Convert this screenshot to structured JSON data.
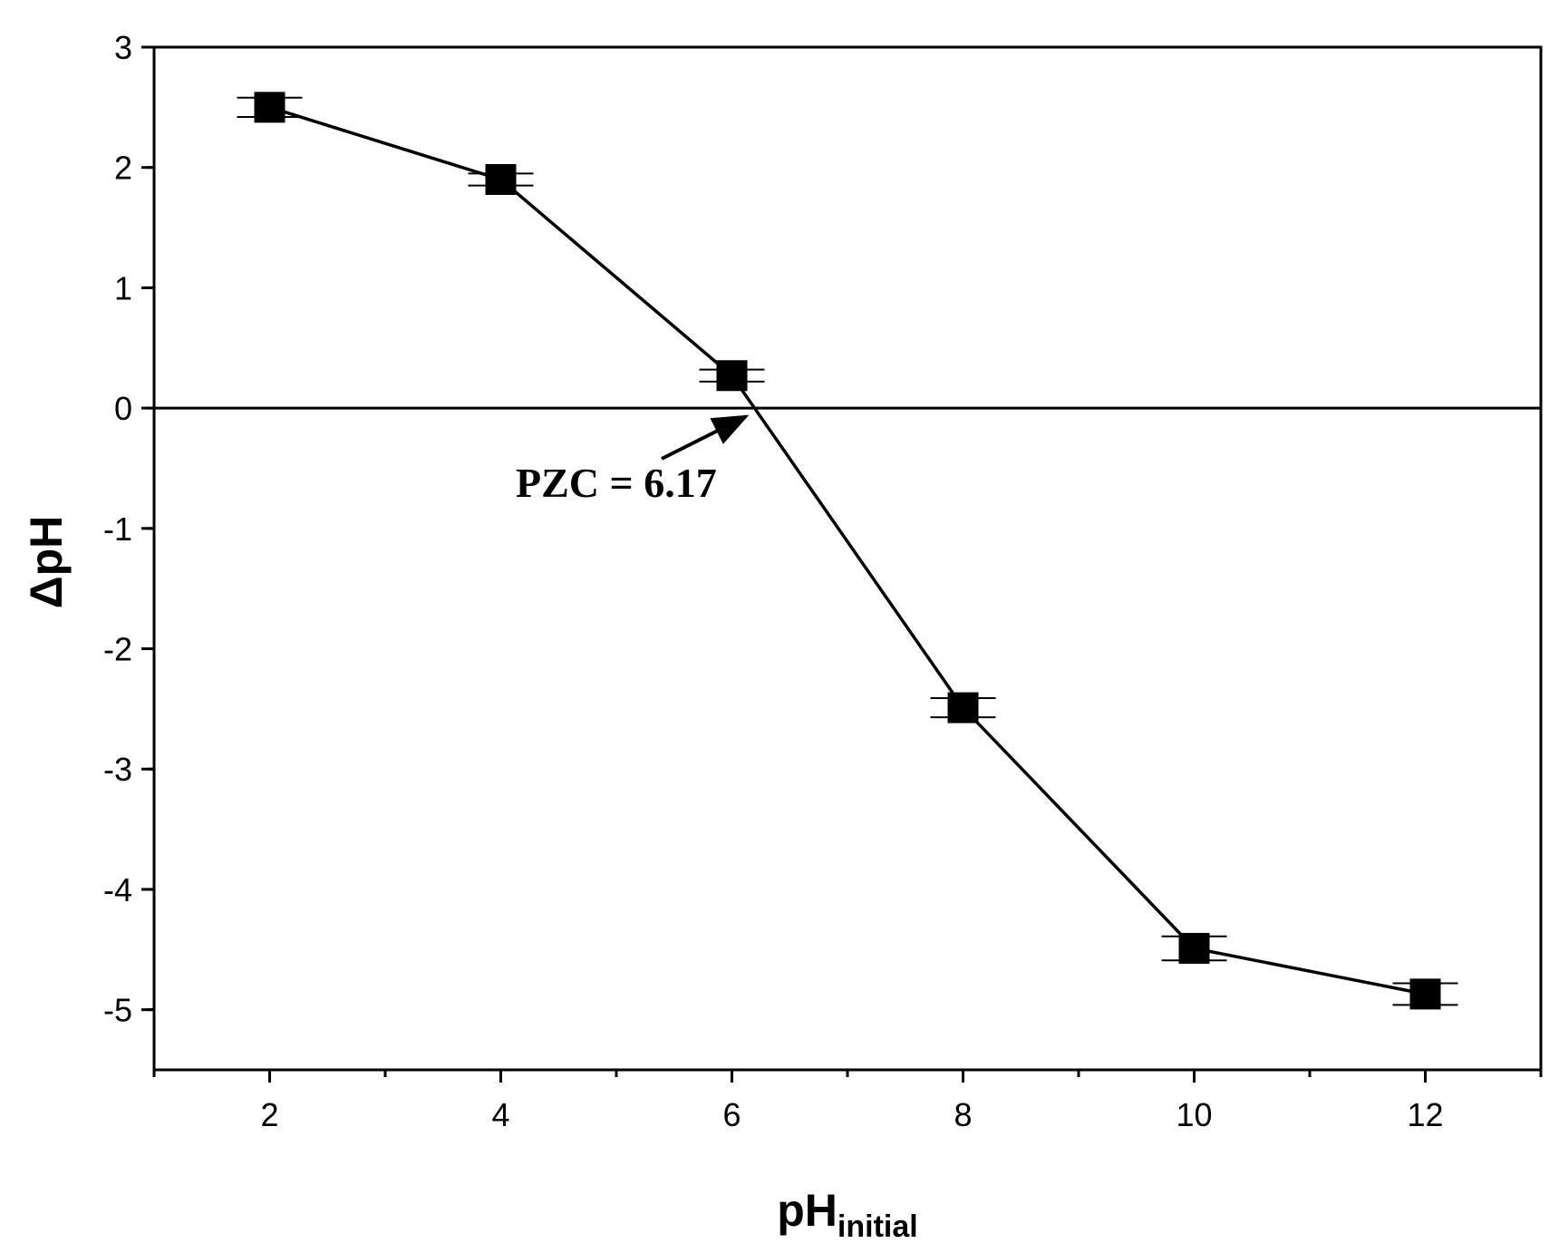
{
  "chart_data": {
    "type": "scatter",
    "xlabel": "pH",
    "xlabel_subscript": "initial",
    "ylabel": "ΔpH",
    "xlim": [
      1,
      13
    ],
    "ylim": [
      -5.5,
      3
    ],
    "x_ticks": [
      2,
      4,
      6,
      8,
      10,
      12
    ],
    "y_ticks": [
      3,
      2,
      1,
      0,
      -1,
      -2,
      -3,
      -4,
      -5
    ],
    "x_tick_labels": [
      "2",
      "4",
      "6",
      "8",
      "10",
      "12"
    ],
    "y_tick_labels": [
      "3",
      "2",
      "1",
      "0",
      "-1",
      "-2",
      "-3",
      "-4",
      "-5"
    ],
    "series": [
      {
        "marker": "square",
        "line": true,
        "color": "#000000",
        "x": [
          2,
          4,
          6,
          8,
          10,
          12
        ],
        "y": [
          2.5,
          1.9,
          0.27,
          -2.49,
          -4.49,
          -4.87
        ],
        "error": [
          0.08,
          0.05,
          0.05,
          0.08,
          0.1,
          0.09
        ]
      }
    ],
    "reference_line": {
      "y": 0
    },
    "annotation": {
      "text": "PZC = 6.17",
      "arrow_target": {
        "x": 6.12,
        "y": -0.07
      }
    },
    "grid": false
  }
}
